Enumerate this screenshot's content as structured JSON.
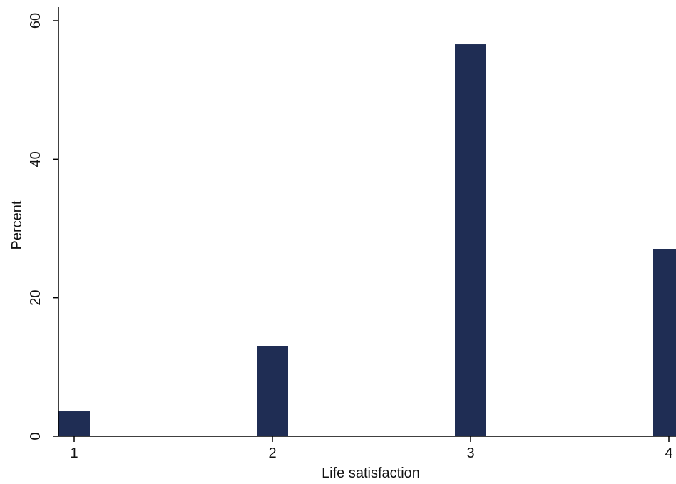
{
  "chart_data": {
    "type": "bar",
    "xlabel": "Life satisfaction",
    "ylabel": "Percent",
    "categories": [
      1,
      2,
      3,
      4
    ],
    "values": [
      3.6,
      13.0,
      56.6,
      27.0
    ],
    "ylim": [
      0,
      60
    ],
    "xlim": [
      1,
      4
    ],
    "yticks": [
      0,
      20,
      40,
      60
    ],
    "xticks": [
      1,
      2,
      3,
      4
    ],
    "grid": false,
    "bar_color": "#1f2d54",
    "axis_color": "#000000"
  }
}
